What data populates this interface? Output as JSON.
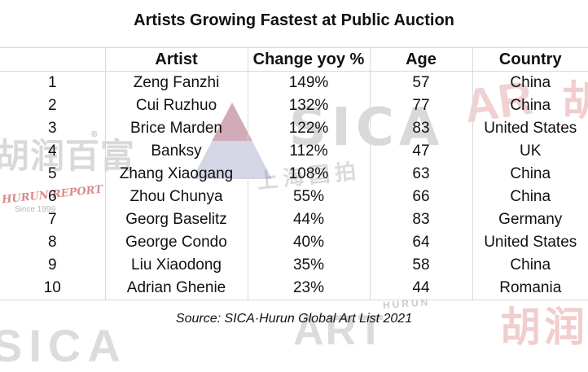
{
  "title": "Artists Growing Fastest at Public Auction",
  "headers": {
    "rank": "",
    "artist": "Artist",
    "change": "Change yoy %",
    "age": "Age",
    "country": "Country"
  },
  "rows": [
    {
      "rank": "1",
      "artist": "Zeng Fanzhi",
      "change": "149%",
      "age": "57",
      "country": "China"
    },
    {
      "rank": "2",
      "artist": "Cui Ruzhuo",
      "change": "132%",
      "age": "77",
      "country": "China"
    },
    {
      "rank": "3",
      "artist": "Brice Marden",
      "change": "122%",
      "age": "83",
      "country": "United States"
    },
    {
      "rank": "4",
      "artist": "Banksy",
      "change": "112%",
      "age": "47",
      "country": "UK"
    },
    {
      "rank": "5",
      "artist": "Zhang Xiaogang",
      "change": "108%",
      "age": "63",
      "country": "China"
    },
    {
      "rank": "6",
      "artist": "Zhou Chunya",
      "change": "55%",
      "age": "66",
      "country": "China"
    },
    {
      "rank": "7",
      "artist": "Georg Baselitz",
      "change": "44%",
      "age": "83",
      "country": "Germany"
    },
    {
      "rank": "8",
      "artist": "George Condo",
      "change": "40%",
      "age": "64",
      "country": "United States"
    },
    {
      "rank": "9",
      "artist": "Liu Xiaodong",
      "change": "35%",
      "age": "58",
      "country": "China"
    },
    {
      "rank": "10",
      "artist": "Adrian Ghenie",
      "change": "23%",
      "age": "44",
      "country": "Romania"
    }
  ],
  "source": "Source: SICA·Hurun Global Art List 2021",
  "watermarks": {
    "hurun_chinese": "胡润百富",
    "hurun_report": "HURUN REPORT",
    "since": "Since 1999",
    "sica": "SICA",
    "sica_chinese": "上海国拍",
    "right_latin": "AR",
    "right_chinese": "胡",
    "bottom_sica": "SICA",
    "bottom_art": "ART",
    "bottom_hurun": "HURUN",
    "bottom_chinese": "胡润"
  },
  "colors": {
    "gridline": "#d9d9d9",
    "text": "#111111",
    "watermark_gray": "#8c8c8c",
    "watermark_red": "#c83c3c"
  }
}
